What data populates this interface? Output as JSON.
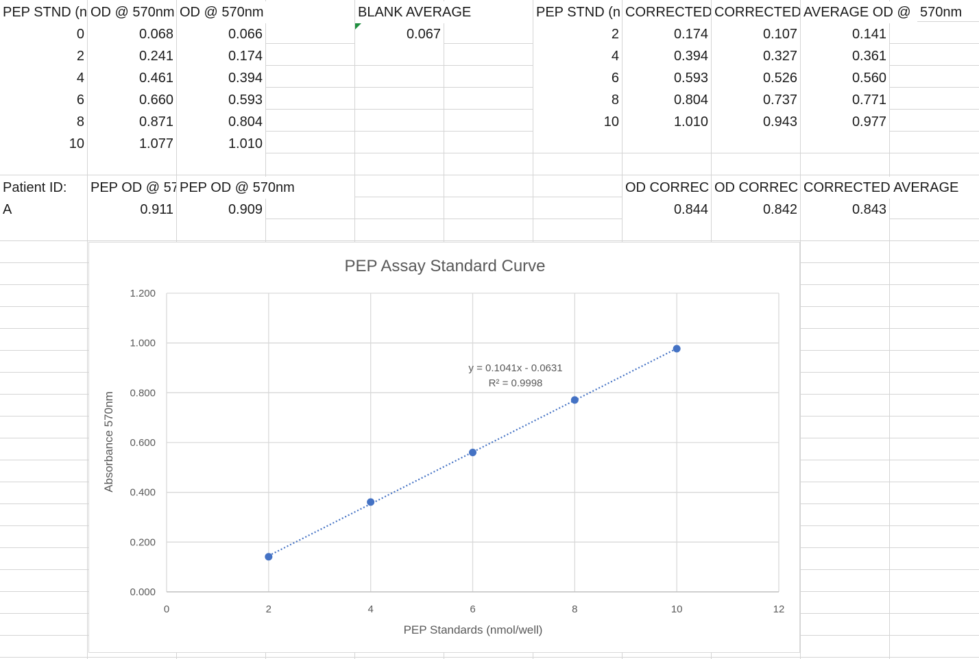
{
  "sheet": {
    "row1": {
      "A": "PEP STND (n",
      "B": "OD @ 570nm",
      "C": "OD @ 570nm",
      "E": "BLANK AVERAGE",
      "G": "PEP STND (n",
      "H": "CORRECTED",
      "I": "CORRECTED",
      "J": "AVERAGE OD @",
      "K": "570nm"
    },
    "standards_raw": [
      {
        "stnd": "0",
        "od1": "0.068",
        "od2": "0.066"
      },
      {
        "stnd": "2",
        "od1": "0.241",
        "od2": "0.174"
      },
      {
        "stnd": "4",
        "od1": "0.461",
        "od2": "0.394"
      },
      {
        "stnd": "6",
        "od1": "0.660",
        "od2": "0.593"
      },
      {
        "stnd": "8",
        "od1": "0.871",
        "od2": "0.804"
      },
      {
        "stnd": "10",
        "od1": "1.077",
        "od2": "1.010"
      }
    ],
    "blank_average": "0.067",
    "standards_corrected": [
      {
        "stnd": "2",
        "c1": "0.174",
        "c2": "0.107",
        "avg": "0.141"
      },
      {
        "stnd": "4",
        "c1": "0.394",
        "c2": "0.327",
        "avg": "0.361"
      },
      {
        "stnd": "6",
        "c1": "0.593",
        "c2": "0.526",
        "avg": "0.560"
      },
      {
        "stnd": "8",
        "c1": "0.804",
        "c2": "0.737",
        "avg": "0.771"
      },
      {
        "stnd": "10",
        "c1": "1.010",
        "c2": "0.943",
        "avg": "0.977"
      }
    ],
    "row9": {
      "A": "Patient ID:",
      "B": "PEP OD @ 57",
      "C": "PEP OD @ 570nm",
      "H": "OD  CORREC",
      "I": "OD  CORREC",
      "J": "CORRECTED AVERAGE"
    },
    "patient": {
      "id": "A",
      "od1": "0.911",
      "od2": "0.909",
      "c1": "0.844",
      "c2": "0.842",
      "avg": "0.843"
    }
  },
  "chart_data": {
    "type": "scatter",
    "title": "PEP Assay Standard Curve",
    "xlabel": "PEP Standards (nmol/well)",
    "ylabel": "Absorbance 570nm",
    "x": [
      2,
      4,
      6,
      8,
      10
    ],
    "y": [
      0.141,
      0.361,
      0.56,
      0.771,
      0.977
    ],
    "xlim": [
      0,
      12
    ],
    "ylim": [
      0,
      1.2
    ],
    "xticks": [
      "0",
      "2",
      "4",
      "6",
      "8",
      "10",
      "12"
    ],
    "yticks": [
      "0.000",
      "0.200",
      "0.400",
      "0.600",
      "0.800",
      "1.000",
      "1.200"
    ],
    "trendline": {
      "type": "linear",
      "style": "dotted",
      "slope": 0.1041,
      "intercept": -0.0631
    },
    "equation_label": "y = 0.1041x - 0.0631",
    "r2_label": "R² = 0.9998",
    "grid": true,
    "legend": "none",
    "colors": {
      "marker": "#4472c4",
      "grid": "#d9d9d9",
      "text": "#595959"
    }
  }
}
